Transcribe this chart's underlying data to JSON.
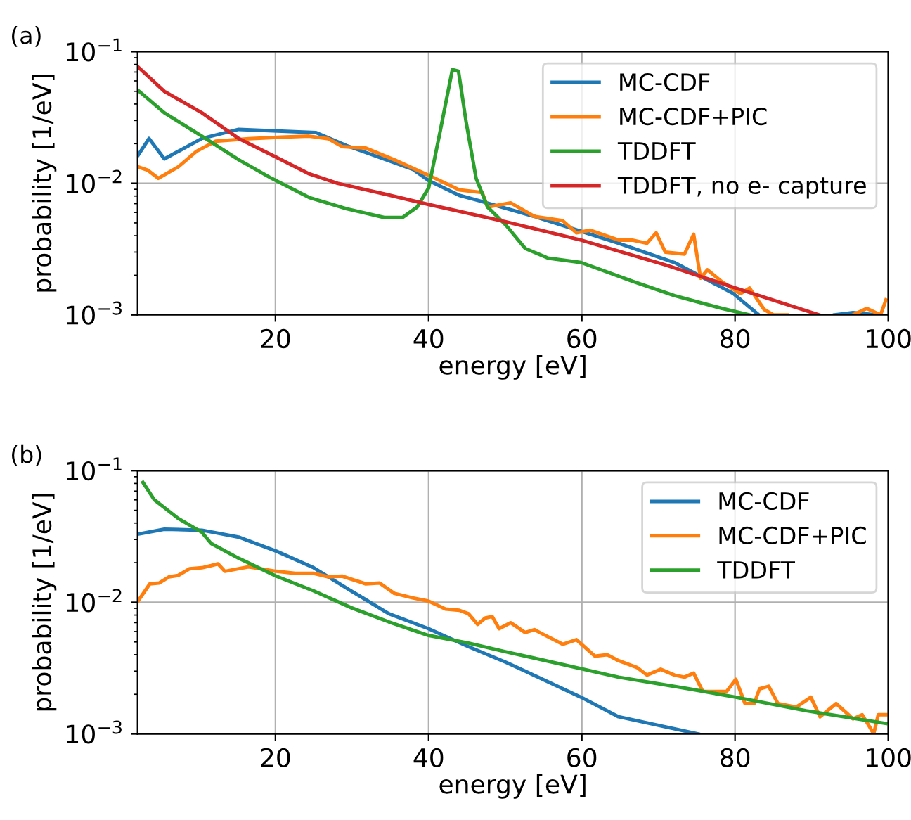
{
  "chart_data": [
    {
      "type": "line",
      "title": "(a)",
      "xlabel": "energy [eV]",
      "ylabel": "probability [1/eV]",
      "log": "y",
      "grid": true,
      "legend": "top right",
      "xlim": [
        2,
        100
      ],
      "xticks": [
        20,
        40,
        60,
        80,
        100
      ],
      "ylim": [
        0.001,
        0.1
      ],
      "yticks": [
        {
          "value": 0.001,
          "label": "10$^{−3}$"
        },
        {
          "value": 0.01,
          "label": "10$^{−2}$"
        },
        {
          "value": 0.1,
          "label": "10$^{−1}$"
        }
      ],
      "series": [
        {
          "name": "MC-CDF",
          "color": "#1f77b4",
          "x": [
            2.1,
            3.5,
            5.5,
            10.4,
            15.2,
            25.3,
            29.3,
            37.9,
            40,
            44,
            46.5,
            53.8,
            64.8,
            72.1,
            79.8,
            83.1,
            88,
            93,
            95.4,
            98.4
          ],
          "values": [
            0.0164,
            0.0219,
            0.0153,
            0.0219,
            0.0257,
            0.0243,
            0.0193,
            0.0128,
            0.0105,
            0.0081,
            0.0074,
            0.0056,
            0.0035,
            0.0025,
            0.00145,
            0.001,
            null,
            0.001,
            0.00104,
            0.001
          ]
        },
        {
          "name": "MC-CDF+PIC",
          "color": "#ff7f0e",
          "x": [
            2.1,
            3.3,
            4.7,
            7.3,
            9.7,
            12.2,
            16.5,
            20.8,
            24.4,
            26.9,
            28.7,
            31.8,
            35.5,
            40.3,
            44,
            47,
            47.7,
            50.7,
            53.8,
            57.5,
            59.3,
            61.1,
            64.8,
            66.6,
            68.5,
            69.7,
            70.9,
            73.4,
            74.6,
            75.5,
            76.4,
            78.2,
            80.7,
            81.9,
            83.8,
            85,
            86.8,
            90,
            95.4,
            97.2,
            99,
            99.7
          ],
          "values": [
            0.0133,
            0.0126,
            0.0109,
            0.0133,
            0.0175,
            0.0209,
            0.0218,
            0.0224,
            0.0228,
            0.0218,
            0.019,
            0.0185,
            0.0151,
            0.0113,
            0.0089,
            0.0085,
            0.0066,
            0.0071,
            0.0056,
            0.0052,
            0.0042,
            0.0044,
            0.0037,
            0.0037,
            0.0035,
            0.0042,
            0.003,
            0.0029,
            0.0041,
            0.0019,
            0.0022,
            0.0018,
            0.00145,
            0.0016,
            0.0011,
            0.001,
            0.001,
            null,
            0.001,
            0.00112,
            0.001,
            0.0013
          ]
        },
        {
          "name": "TDDFT",
          "color": "#2ca02c",
          "x": [
            2.1,
            5.5,
            10.4,
            15.2,
            19.5,
            24.4,
            29.3,
            34.2,
            36.6,
            38.5,
            40,
            41.5,
            43.1,
            43.9,
            44.9,
            46.2,
            47.7,
            50.1,
            52.6,
            55.6,
            59.9,
            66.6,
            72.1,
            78.3,
            81.9
          ],
          "values": [
            0.0506,
            0.0343,
            0.0228,
            0.0151,
            0.0109,
            0.0078,
            0.0064,
            0.0055,
            0.0055,
            0.0066,
            0.0092,
            0.0247,
            0.073,
            0.071,
            0.0291,
            0.0109,
            0.0066,
            0.0048,
            0.0032,
            0.0027,
            0.0025,
            0.0018,
            0.0014,
            0.00112,
            0.001
          ]
        },
        {
          "name": "TDDFT, no e- capture",
          "color": "#d62728",
          "x": [
            2.1,
            5.5,
            10.4,
            15.2,
            20.1,
            24.4,
            28.1,
            34.2,
            40,
            50.1,
            59.9,
            70.9,
            80.1,
            91
          ],
          "values": [
            0.0762,
            0.05,
            0.0343,
            0.0219,
            0.0158,
            0.0118,
            0.01,
            0.0083,
            0.0069,
            0.0051,
            0.0037,
            0.0024,
            0.0016,
            0.001
          ]
        }
      ]
    },
    {
      "type": "line",
      "title": "(b)",
      "xlabel": "energy [eV]",
      "ylabel": "probability [1/eV]",
      "log": "y",
      "grid": true,
      "legend": "top right",
      "xlim": [
        2,
        100
      ],
      "xticks": [
        20,
        40,
        60,
        80,
        100
      ],
      "ylim": [
        0.001,
        0.1
      ],
      "yticks": [
        {
          "value": 0.001,
          "label": "10$^{−3}$"
        },
        {
          "value": 0.01,
          "label": "10$^{−2}$"
        },
        {
          "value": 0.1,
          "label": "10$^{−1}$"
        }
      ],
      "series": [
        {
          "name": "MC-CDF",
          "color": "#1f77b4",
          "x": [
            2.1,
            5.5,
            10.4,
            15.2,
            20.1,
            25,
            29.9,
            34.8,
            40,
            45.2,
            50.1,
            52.6,
            59.9,
            64.8,
            75.2
          ],
          "values": [
            0.033,
            0.0359,
            0.0353,
            0.0313,
            0.0245,
            0.0183,
            0.0122,
            0.0082,
            0.0063,
            0.0046,
            0.0035,
            0.003,
            0.0019,
            0.00135,
            0.001
          ]
        },
        {
          "name": "MC-CDF+PIC",
          "color": "#ff7f0e",
          "x": [
            2.1,
            3.6,
            4.8,
            6.1,
            7.3,
            8.8,
            10.4,
            11.6,
            12.5,
            13.4,
            15.2,
            16.5,
            20.1,
            22.6,
            25,
            26.9,
            28.7,
            31.8,
            33.6,
            35.5,
            37.9,
            40,
            42.2,
            44,
            45.2,
            46.4,
            47.4,
            48.3,
            49.2,
            50.7,
            52.6,
            53.8,
            55,
            57.5,
            59.3,
            61.7,
            63.3,
            64.8,
            67.2,
            68.5,
            70.3,
            72.1,
            73.4,
            74.6,
            75.8,
            77,
            78.9,
            80.1,
            81.3,
            82.5,
            83.2,
            84.4,
            85.6,
            88,
            89.9,
            91.1,
            93.2,
            94.8,
            95.4,
            96.6,
            97.5,
            98.1,
            98.7,
            99.7
          ],
          "values": [
            0.0103,
            0.0138,
            0.014,
            0.0156,
            0.016,
            0.018,
            0.0183,
            0.019,
            0.0196,
            0.0172,
            0.018,
            0.0186,
            0.0172,
            0.0166,
            0.0166,
            0.0156,
            0.0158,
            0.0138,
            0.014,
            0.0117,
            0.0108,
            0.0102,
            0.0089,
            0.0087,
            0.0082,
            0.0068,
            0.0076,
            0.0078,
            0.0063,
            0.007,
            0.0059,
            0.0062,
            0.0057,
            0.0048,
            0.0052,
            0.0039,
            0.004,
            0.0036,
            0.0032,
            0.0028,
            0.0031,
            0.0028,
            0.0027,
            0.0029,
            0.0021,
            0.0021,
            0.0021,
            0.0026,
            0.0017,
            0.0017,
            0.0022,
            0.0023,
            0.0017,
            0.0016,
            0.0019,
            0.00135,
            0.0017,
            0.0014,
            0.0013,
            0.0014,
            0.00115,
            0.001,
            0.0014,
            0.0014
          ]
        },
        {
          "name": "TDDFT",
          "color": "#2ca02c",
          "x": [
            2.7,
            4.2,
            7.3,
            10.4,
            11.6,
            15.2,
            20.1,
            25,
            29.9,
            34.8,
            40,
            45.2,
            50.1,
            54.4,
            64.8,
            74,
            80.1,
            89.3,
            99.7
          ],
          "values": [
            0.0815,
            0.06,
            0.0434,
            0.034,
            0.028,
            0.0216,
            0.0158,
            0.0122,
            0.0091,
            0.0071,
            0.0056,
            0.0049,
            0.0042,
            0.0037,
            0.0027,
            0.0022,
            0.0019,
            0.0015,
            0.0012
          ]
        }
      ]
    }
  ]
}
